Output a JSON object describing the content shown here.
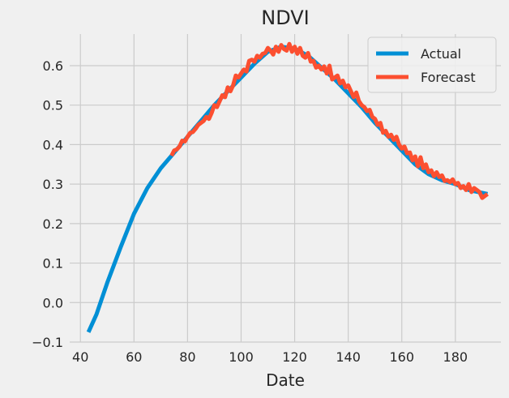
{
  "chart_data": {
    "type": "line",
    "title": "NDVI",
    "xlabel": "Date",
    "ylabel": "",
    "xlim": [
      36,
      197
    ],
    "ylim": [
      -0.1,
      0.68
    ],
    "xticks": [
      40,
      60,
      80,
      100,
      120,
      140,
      160,
      180
    ],
    "yticks": [
      -0.1,
      0.0,
      0.1,
      0.2,
      0.3,
      0.4,
      0.5,
      0.6
    ],
    "ytick_labels": [
      "−0.1",
      "0.0",
      "0.1",
      "0.2",
      "0.3",
      "0.4",
      "0.5",
      "0.6"
    ],
    "xtick_labels": [
      "40",
      "60",
      "80",
      "100",
      "120",
      "140",
      "160",
      "180"
    ],
    "grid": true,
    "legend_position": "top-right",
    "series": [
      {
        "name": "Actual",
        "color": "#008fd5",
        "points": [
          [
            43,
            -0.075
          ],
          [
            46,
            -0.03
          ],
          [
            50,
            0.05
          ],
          [
            55,
            0.14
          ],
          [
            60,
            0.225
          ],
          [
            65,
            0.29
          ],
          [
            70,
            0.34
          ],
          [
            75,
            0.38
          ],
          [
            80,
            0.42
          ],
          [
            85,
            0.46
          ],
          [
            90,
            0.5
          ],
          [
            95,
            0.535
          ],
          [
            100,
            0.57
          ],
          [
            105,
            0.605
          ],
          [
            110,
            0.635
          ],
          [
            115,
            0.648
          ],
          [
            120,
            0.643
          ],
          [
            125,
            0.625
          ],
          [
            130,
            0.595
          ],
          [
            135,
            0.565
          ],
          [
            140,
            0.53
          ],
          [
            145,
            0.495
          ],
          [
            150,
            0.455
          ],
          [
            155,
            0.42
          ],
          [
            160,
            0.385
          ],
          [
            165,
            0.35
          ],
          [
            170,
            0.325
          ],
          [
            175,
            0.31
          ],
          [
            180,
            0.3
          ],
          [
            185,
            0.285
          ],
          [
            192,
            0.275
          ]
        ]
      },
      {
        "name": "Forecast",
        "color": "#fc4f30",
        "points": [
          [
            74,
            0.372
          ],
          [
            75,
            0.385
          ],
          [
            76,
            0.388
          ],
          [
            77,
            0.395
          ],
          [
            78,
            0.41
          ],
          [
            79,
            0.408
          ],
          [
            80,
            0.42
          ],
          [
            81,
            0.43
          ],
          [
            82,
            0.432
          ],
          [
            83,
            0.44
          ],
          [
            84,
            0.45
          ],
          [
            85,
            0.455
          ],
          [
            86,
            0.46
          ],
          [
            87,
            0.47
          ],
          [
            88,
            0.465
          ],
          [
            89,
            0.48
          ],
          [
            90,
            0.5
          ],
          [
            91,
            0.495
          ],
          [
            92,
            0.51
          ],
          [
            93,
            0.525
          ],
          [
            94,
            0.52
          ],
          [
            95,
            0.545
          ],
          [
            96,
            0.535
          ],
          [
            97,
            0.55
          ],
          [
            98,
            0.575
          ],
          [
            99,
            0.57
          ],
          [
            100,
            0.58
          ],
          [
            101,
            0.59
          ],
          [
            102,
            0.585
          ],
          [
            103,
            0.612
          ],
          [
            104,
            0.615
          ],
          [
            105,
            0.61
          ],
          [
            106,
            0.625
          ],
          [
            107,
            0.62
          ],
          [
            108,
            0.63
          ],
          [
            109,
            0.632
          ],
          [
            110,
            0.645
          ],
          [
            111,
            0.638
          ],
          [
            112,
            0.628
          ],
          [
            113,
            0.648
          ],
          [
            114,
            0.635
          ],
          [
            115,
            0.652
          ],
          [
            116,
            0.642
          ],
          [
            117,
            0.638
          ],
          [
            118,
            0.655
          ],
          [
            119,
            0.635
          ],
          [
            120,
            0.648
          ],
          [
            121,
            0.63
          ],
          [
            122,
            0.645
          ],
          [
            123,
            0.625
          ],
          [
            124,
            0.62
          ],
          [
            125,
            0.632
          ],
          [
            126,
            0.61
          ],
          [
            127,
            0.612
          ],
          [
            128,
            0.595
          ],
          [
            129,
            0.6
          ],
          [
            130,
            0.59
          ],
          [
            131,
            0.598
          ],
          [
            132,
            0.58
          ],
          [
            133,
            0.6
          ],
          [
            134,
            0.565
          ],
          [
            135,
            0.57
          ],
          [
            136,
            0.575
          ],
          [
            137,
            0.555
          ],
          [
            138,
            0.562
          ],
          [
            139,
            0.545
          ],
          [
            140,
            0.55
          ],
          [
            141,
            0.535
          ],
          [
            142,
            0.52
          ],
          [
            143,
            0.532
          ],
          [
            144,
            0.51
          ],
          [
            145,
            0.5
          ],
          [
            146,
            0.495
          ],
          [
            147,
            0.485
          ],
          [
            148,
            0.488
          ],
          [
            149,
            0.47
          ],
          [
            150,
            0.465
          ],
          [
            151,
            0.45
          ],
          [
            152,
            0.455
          ],
          [
            153,
            0.43
          ],
          [
            154,
            0.435
          ],
          [
            155,
            0.42
          ],
          [
            156,
            0.425
          ],
          [
            157,
            0.412
          ],
          [
            158,
            0.42
          ],
          [
            159,
            0.4
          ],
          [
            160,
            0.39
          ],
          [
            161,
            0.395
          ],
          [
            162,
            0.378
          ],
          [
            163,
            0.38
          ],
          [
            164,
            0.36
          ],
          [
            165,
            0.37
          ],
          [
            166,
            0.345
          ],
          [
            167,
            0.368
          ],
          [
            168,
            0.34
          ],
          [
            169,
            0.35
          ],
          [
            170,
            0.33
          ],
          [
            171,
            0.335
          ],
          [
            172,
            0.32
          ],
          [
            173,
            0.33
          ],
          [
            174,
            0.318
          ],
          [
            175,
            0.322
          ],
          [
            176,
            0.308
          ],
          [
            177,
            0.31
          ],
          [
            178,
            0.305
          ],
          [
            179,
            0.312
          ],
          [
            180,
            0.3
          ],
          [
            181,
            0.303
          ],
          [
            182,
            0.29
          ],
          [
            183,
            0.295
          ],
          [
            184,
            0.285
          ],
          [
            185,
            0.3
          ],
          [
            186,
            0.28
          ],
          [
            187,
            0.29
          ],
          [
            188,
            0.285
          ],
          [
            189,
            0.28
          ],
          [
            190,
            0.265
          ],
          [
            191,
            0.27
          ],
          [
            192,
            0.275
          ]
        ]
      }
    ]
  }
}
